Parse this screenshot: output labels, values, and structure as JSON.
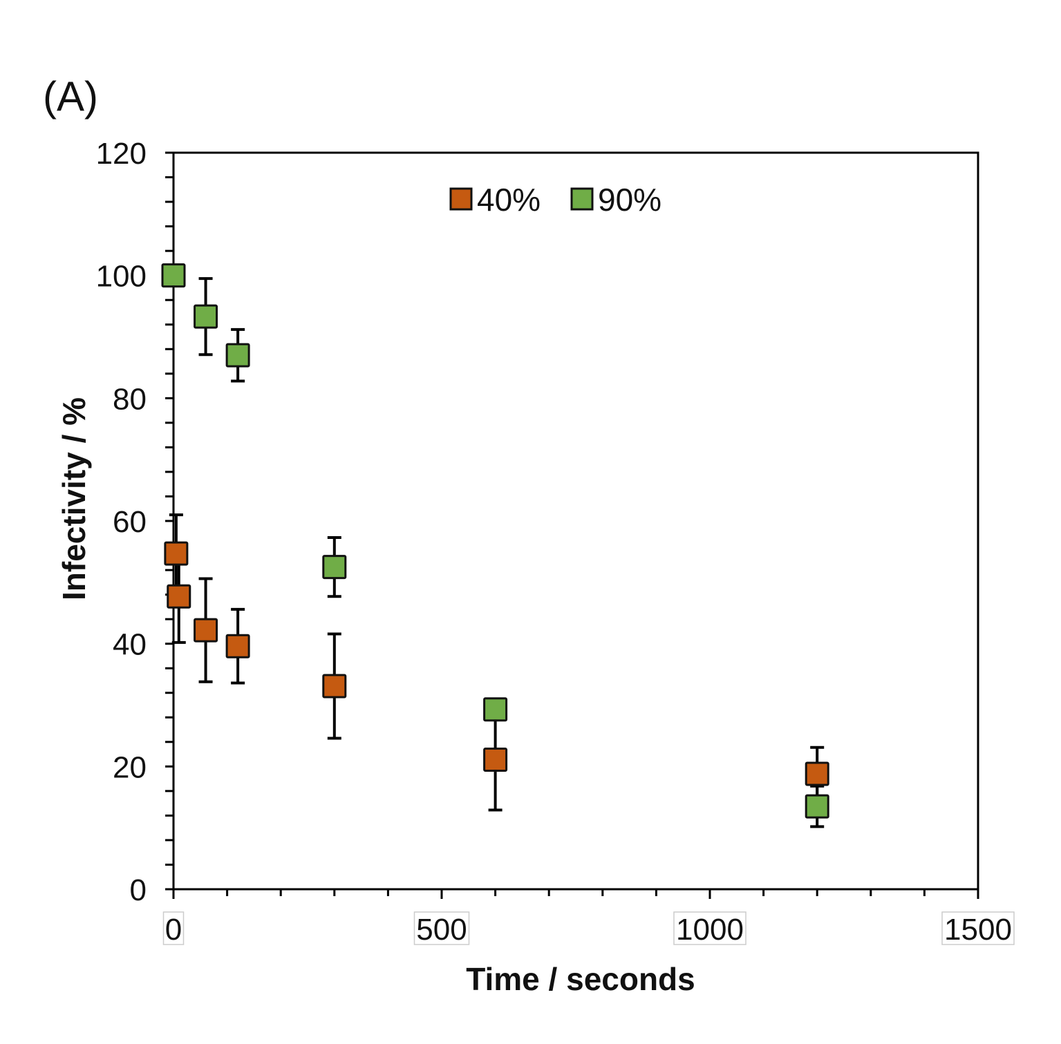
{
  "panel_label": "(A)",
  "chart_data": {
    "type": "scatter",
    "title": "",
    "xlabel": "Time / seconds",
    "ylabel": "Infectivity / %",
    "xlim": [
      0,
      1500
    ],
    "ylim": [
      0,
      120
    ],
    "x_ticks": [
      0,
      500,
      1000,
      1500
    ],
    "x_tick_labels": [
      "0",
      "500",
      "1000",
      "1500"
    ],
    "x_minor_step": 100,
    "y_ticks": [
      0,
      20,
      40,
      60,
      80,
      100,
      120
    ],
    "y_tick_labels": [
      "0",
      "20",
      "40",
      "60",
      "80",
      "100",
      "120"
    ],
    "y_minor_step": 4,
    "grid": false,
    "legend_position": "top-center",
    "series": [
      {
        "name": "40%",
        "color": "#c55a11",
        "marker": "square",
        "points": [
          {
            "x": 5,
            "y": 54.7,
            "err": 6.3
          },
          {
            "x": 10,
            "y": 47.7,
            "err": 7.5
          },
          {
            "x": 60,
            "y": 42.2,
            "err": 8.4
          },
          {
            "x": 120,
            "y": 39.6,
            "err": 6.0
          },
          {
            "x": 300,
            "y": 33.1,
            "err": 8.5
          },
          {
            "x": 600,
            "y": 21.1,
            "err": 8.2
          },
          {
            "x": 1200,
            "y": 18.8,
            "err": 4.3
          }
        ]
      },
      {
        "name": "90%",
        "color": "#70ad47",
        "marker": "square",
        "points": [
          {
            "x": 0,
            "y": 100,
            "err": 0
          },
          {
            "x": 60,
            "y": 93.3,
            "err": 6.2
          },
          {
            "x": 120,
            "y": 87.0,
            "err": 4.2
          },
          {
            "x": 300,
            "y": 52.5,
            "err": 4.8
          },
          {
            "x": 600,
            "y": 29.3,
            "err": 0
          },
          {
            "x": 1200,
            "y": 13.5,
            "err": 3.3
          }
        ]
      }
    ]
  }
}
